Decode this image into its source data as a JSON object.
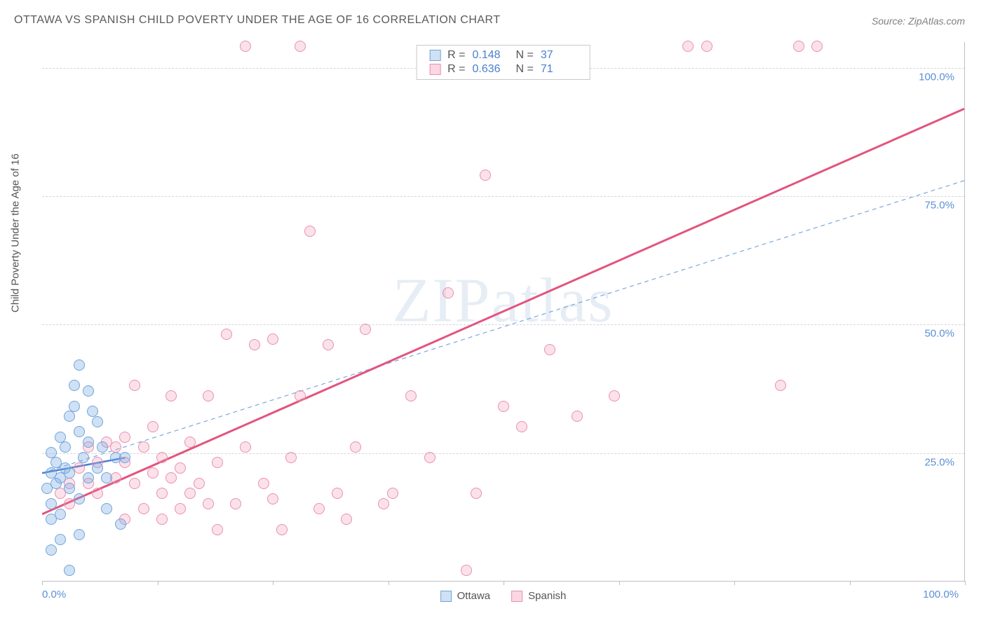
{
  "title": "OTTAWA VS SPANISH CHILD POVERTY UNDER THE AGE OF 16 CORRELATION CHART",
  "source": "Source: ZipAtlas.com",
  "ylabel": "Child Poverty Under the Age of 16",
  "watermark": "ZIPatlas",
  "chart": {
    "type": "scatter",
    "background_color": "#ffffff",
    "grid_color": "#d6d6d6",
    "axis_color": "#bfbfbf",
    "xlim": [
      0,
      100
    ],
    "ylim": [
      0,
      105
    ],
    "y_ticks": [
      25,
      50,
      75,
      100
    ],
    "y_tick_labels": [
      "25.0%",
      "50.0%",
      "75.0%",
      "100.0%"
    ],
    "x_ticks": [
      0,
      12.5,
      25,
      37.5,
      50,
      62.5,
      75,
      87.5,
      100
    ],
    "x_tick_labels": {
      "0": "0.0%",
      "100": "100.0%"
    },
    "marker_radius": 8,
    "series": {
      "ottawa": {
        "label": "Ottawa",
        "color_fill": "rgba(120,170,225,0.35)",
        "color_border": "#6fa4da",
        "R": "0.148",
        "N": "37",
        "trend_solid": {
          "x1": 0,
          "y1": 21,
          "x2": 9,
          "y2": 24,
          "color": "#4a7fd0",
          "width": 2.5
        },
        "trend_dashed": {
          "x1": 0,
          "y1": 21,
          "x2": 100,
          "y2": 78,
          "color": "#7aa8df",
          "width": 1.2,
          "dash": "6,5"
        },
        "points": [
          [
            0.5,
            18
          ],
          [
            1,
            21
          ],
          [
            1,
            15
          ],
          [
            1.5,
            19
          ],
          [
            1,
            12
          ],
          [
            1.5,
            23
          ],
          [
            2,
            28
          ],
          [
            2,
            13
          ],
          [
            2,
            20
          ],
          [
            1,
            25
          ],
          [
            2.5,
            22
          ],
          [
            2.5,
            26
          ],
          [
            3,
            32
          ],
          [
            3,
            21
          ],
          [
            3,
            18
          ],
          [
            3.5,
            34
          ],
          [
            3.5,
            38
          ],
          [
            4,
            42
          ],
          [
            4,
            29
          ],
          [
            4.5,
            24
          ],
          [
            5,
            20
          ],
          [
            5,
            37
          ],
          [
            5,
            27
          ],
          [
            5.5,
            33
          ],
          [
            6,
            22
          ],
          [
            6,
            31
          ],
          [
            6.5,
            26
          ],
          [
            7,
            14
          ],
          [
            7,
            20
          ],
          [
            8,
            24
          ],
          [
            8.5,
            11
          ],
          [
            9,
            24
          ],
          [
            3,
            2
          ],
          [
            4,
            9
          ],
          [
            2,
            8
          ],
          [
            1,
            6
          ],
          [
            4,
            16
          ]
        ]
      },
      "spanish": {
        "label": "Spanish",
        "color_fill": "rgba(240,140,170,0.25)",
        "color_border": "#ea8fae",
        "R": "0.636",
        "N": "71",
        "trend_solid": {
          "x1": 0,
          "y1": 13,
          "x2": 100,
          "y2": 92,
          "color": "#e3547e",
          "width": 3
        },
        "points": [
          [
            2,
            17
          ],
          [
            3,
            19
          ],
          [
            3,
            15
          ],
          [
            4,
            22
          ],
          [
            5,
            26
          ],
          [
            5,
            19
          ],
          [
            6,
            23
          ],
          [
            6,
            17
          ],
          [
            7,
            27
          ],
          [
            8,
            20
          ],
          [
            8,
            26
          ],
          [
            9,
            28
          ],
          [
            9,
            23
          ],
          [
            10,
            19
          ],
          [
            10,
            38
          ],
          [
            11,
            26
          ],
          [
            12,
            21
          ],
          [
            12,
            30
          ],
          [
            13,
            17
          ],
          [
            13,
            24
          ],
          [
            14,
            36
          ],
          [
            15,
            22
          ],
          [
            15,
            14
          ],
          [
            16,
            27
          ],
          [
            17,
            19
          ],
          [
            18,
            36
          ],
          [
            18,
            15
          ],
          [
            19,
            23
          ],
          [
            20,
            48
          ],
          [
            21,
            15
          ],
          [
            22,
            26
          ],
          [
            23,
            46
          ],
          [
            24,
            19
          ],
          [
            25,
            47
          ],
          [
            25,
            16
          ],
          [
            26,
            10
          ],
          [
            27,
            24
          ],
          [
            28,
            36
          ],
          [
            29,
            68
          ],
          [
            30,
            14
          ],
          [
            31,
            46
          ],
          [
            32,
            17
          ],
          [
            34,
            26
          ],
          [
            35,
            49
          ],
          [
            37,
            15
          ],
          [
            40,
            36
          ],
          [
            42,
            24
          ],
          [
            44,
            56
          ],
          [
            46,
            2
          ],
          [
            47,
            17
          ],
          [
            48,
            79
          ],
          [
            50,
            34
          ],
          [
            52,
            30
          ],
          [
            55,
            45
          ],
          [
            58,
            32
          ],
          [
            62,
            36
          ],
          [
            22,
            104
          ],
          [
            28,
            104
          ],
          [
            70,
            104
          ],
          [
            72,
            104
          ],
          [
            82,
            104
          ],
          [
            84,
            104
          ],
          [
            80,
            38
          ],
          [
            9,
            12
          ],
          [
            11,
            14
          ],
          [
            13,
            12
          ],
          [
            19,
            10
          ],
          [
            33,
            12
          ],
          [
            38,
            17
          ],
          [
            16,
            17
          ],
          [
            14,
            20
          ]
        ]
      }
    },
    "stats_labels": {
      "R": "R  =",
      "N": "N  ="
    },
    "title_fontsize": 16,
    "label_fontsize": 15,
    "tick_fontsize": 15,
    "tick_color": "#5b8fd6"
  }
}
